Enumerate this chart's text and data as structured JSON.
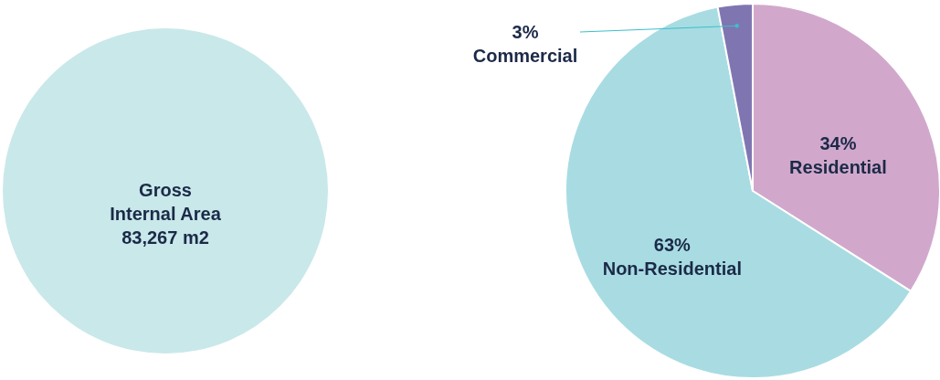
{
  "chart_data": [
    {
      "type": "pie",
      "categories": [
        "Gross Internal Area"
      ],
      "values": [
        83267
      ],
      "colors": [
        "#c9e8ea"
      ],
      "value_labels": [
        "83,267 m2"
      ]
    },
    {
      "type": "pie",
      "categories": [
        "Residential",
        "Non-Residential",
        "Commercial"
      ],
      "values": [
        34,
        63,
        3
      ],
      "colors": [
        "#d1a8cc",
        "#a8dce2",
        "#7f76b1"
      ],
      "value_labels": [
        "34%",
        "63%",
        "3%"
      ]
    }
  ]
}
